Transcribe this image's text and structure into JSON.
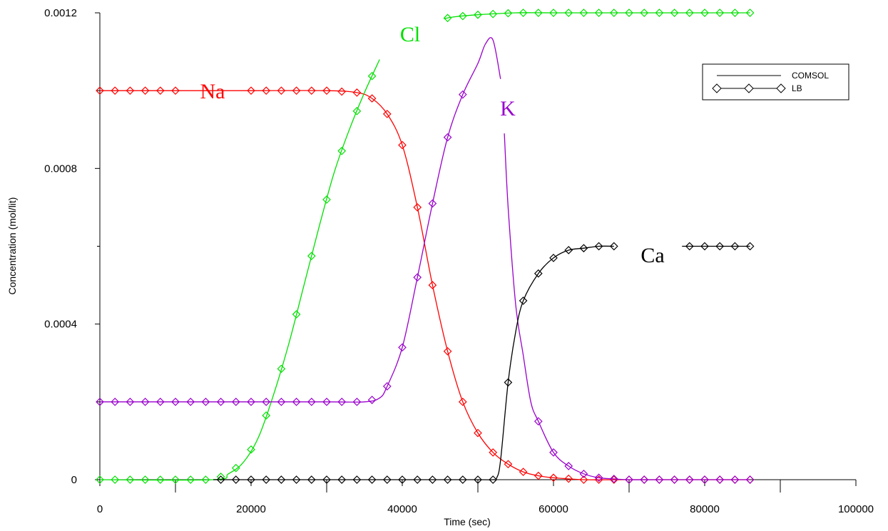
{
  "chart_data": {
    "type": "line",
    "xlabel": "Time (sec)",
    "ylabel": "Concentration (mol/lit)",
    "xlim": [
      0,
      100000
    ],
    "ylim": [
      0,
      0.0012
    ],
    "x_ticks": [
      "0",
      "20000",
      "40000",
      "60000",
      "80000",
      "100000"
    ],
    "y_ticks": [
      "0",
      "0.0004",
      "0.0008",
      "0.0012"
    ],
    "grid": false,
    "legend_position": "top-right",
    "legend": [
      {
        "label": "COMSOL",
        "style": "line"
      },
      {
        "label": "LB",
        "style": "line-diamond"
      }
    ],
    "series": [
      {
        "name": "Na",
        "color": "#ff0000",
        "x": [
          0,
          10000,
          20000,
          30000,
          34000,
          36000,
          38000,
          40000,
          42000,
          44000,
          46000,
          48000,
          50000,
          52000,
          54000,
          56000,
          58000,
          60000,
          64000,
          70000,
          86000
        ],
        "y": [
          0.001,
          0.001,
          0.001,
          0.001,
          0.000995,
          0.00098,
          0.00094,
          0.00086,
          0.0007,
          0.0005,
          0.00033,
          0.0002,
          0.00012,
          7e-05,
          4e-05,
          2e-05,
          1e-05,
          5e-06,
          0,
          0,
          0
        ]
      },
      {
        "name": "Cl",
        "color": "#00e000",
        "x": [
          0,
          15000,
          17000,
          19000,
          21000,
          23000,
          25000,
          27000,
          29000,
          31000,
          33000,
          35000,
          37000
        ],
        "y": [
          0,
          0,
          1.5e-05,
          4.5e-05,
          0.00011,
          0.00022,
          0.00035,
          0.0005,
          0.00065,
          0.00079,
          0.0009,
          0.000995,
          0.00108
        ],
        "x2": [
          45500,
          47000,
          50000,
          55000,
          60000,
          70000,
          80000,
          86000
        ],
        "y2": [
          0.001185,
          0.00119,
          0.001195,
          0.0012,
          0.0012,
          0.0012,
          0.0012,
          0.0012
        ]
      },
      {
        "name": "K",
        "color": "#9900cc",
        "x": [
          0,
          10000,
          20000,
          30000,
          35000,
          37000,
          38000,
          40000,
          42000,
          44000,
          46000,
          48000,
          50000,
          51000,
          52000,
          53000
        ],
        "y": [
          0.0002,
          0.0002,
          0.0002,
          0.0002,
          0.0002,
          0.00021,
          0.00024,
          0.00034,
          0.00052,
          0.00071,
          0.00088,
          0.00099,
          0.00107,
          0.00112,
          0.00113,
          0.00103
        ],
        "x2": [
          53500,
          54000,
          55000,
          56000,
          57000,
          58000,
          60000,
          62000,
          64000,
          66000,
          68000,
          70000,
          75000,
          86000
        ],
        "y2": [
          0.00089,
          0.0007,
          0.00045,
          0.00032,
          0.0002,
          0.00015,
          7e-05,
          3.5e-05,
          1.5e-05,
          5e-06,
          2e-06,
          0,
          0,
          0
        ]
      },
      {
        "name": "Ca",
        "color": "#000000",
        "x": [
          15000,
          20000,
          30000,
          40000,
          50000,
          52000,
          52500,
          53000,
          54000,
          55000,
          56000,
          58000,
          60000,
          62000,
          64000,
          66000,
          68000
        ],
        "y": [
          0,
          0,
          0,
          0,
          0,
          0,
          5e-06,
          5e-05,
          0.00025,
          0.00038,
          0.00046,
          0.00053,
          0.00057,
          0.00059,
          0.000595,
          0.0006,
          0.0006
        ],
        "x2": [
          77000,
          80000,
          83000,
          86000
        ],
        "y2": [
          0.0006,
          0.0006,
          0.0006,
          0.0006
        ]
      }
    ],
    "annotations": [
      {
        "text": "Na",
        "color": "#ff0000"
      },
      {
        "text": "Cl",
        "color": "#00e000"
      },
      {
        "text": "K",
        "color": "#9900cc"
      },
      {
        "text": "Ca",
        "color": "#000000"
      }
    ]
  }
}
